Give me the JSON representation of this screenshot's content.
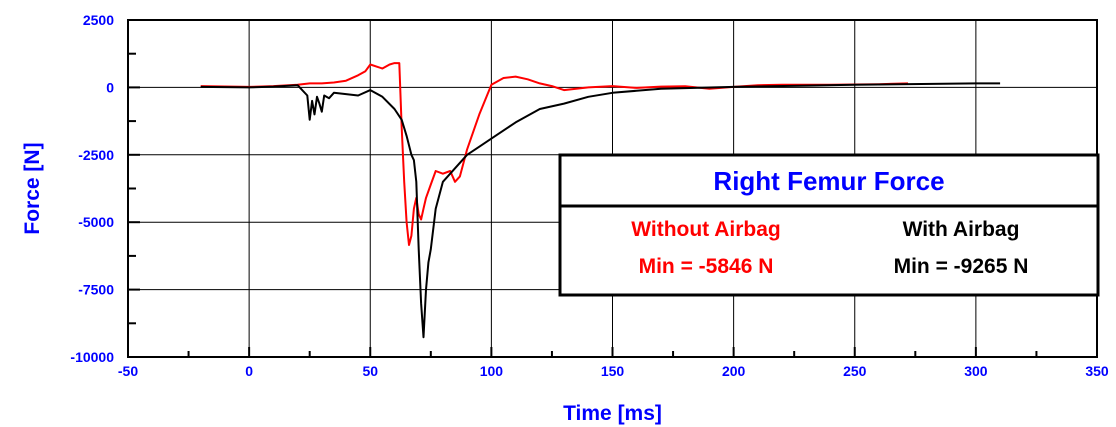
{
  "chart_data": {
    "type": "line",
    "title": "",
    "xlabel": "Time [ms]",
    "ylabel": "Force [N]",
    "xlim": [
      -50,
      350
    ],
    "ylim": [
      -10000,
      2500
    ],
    "x_ticks": [
      -50,
      0,
      50,
      100,
      150,
      200,
      250,
      300,
      350
    ],
    "y_ticks": [
      2500,
      0,
      -2500,
      -5000,
      -7500,
      -10000
    ],
    "grid": true,
    "legend": {
      "title": "Right Femur Force",
      "placement": "right",
      "entries": [
        {
          "label": "Without Airbag",
          "value_text": "Min = -5846 N",
          "color": "#ff0000"
        },
        {
          "label": "With Airbag",
          "value_text": "Min = -9265 N",
          "color": "#000000"
        }
      ]
    },
    "series": [
      {
        "color": "#ff0000",
        "x": [
          -20,
          0,
          10,
          20,
          25,
          30,
          35,
          40,
          45,
          48,
          50,
          55,
          58,
          60,
          62,
          63,
          64,
          65,
          66,
          67,
          68,
          69,
          70,
          71,
          72,
          73,
          75,
          77,
          80,
          83,
          85,
          87,
          90,
          95,
          100,
          105,
          110,
          115,
          120,
          125,
          130,
          140,
          150,
          160,
          170,
          180,
          190,
          200,
          210,
          220,
          240,
          260,
          272
        ],
        "y": [
          50,
          20,
          50,
          100,
          150,
          150,
          180,
          250,
          450,
          600,
          850,
          700,
          850,
          900,
          900,
          -1500,
          -3500,
          -5000,
          -5846,
          -5500,
          -4500,
          -4100,
          -4700,
          -4900,
          -4500,
          -4100,
          -3600,
          -3100,
          -3200,
          -3100,
          -3500,
          -3300,
          -2300,
          -1000,
          100,
          350,
          400,
          300,
          150,
          50,
          -100,
          0,
          50,
          -20,
          30,
          40,
          -50,
          20,
          80,
          100,
          100,
          120,
          150
        ]
      },
      {
        "color": "#000000",
        "x": [
          -20,
          0,
          10,
          20,
          24,
          25,
          26,
          27,
          28,
          29,
          30,
          31,
          33,
          35,
          40,
          45,
          50,
          55,
          60,
          63,
          65,
          67,
          68,
          69,
          70,
          71,
          72,
          73,
          74,
          75,
          77,
          80,
          85,
          90,
          95,
          100,
          110,
          120,
          130,
          140,
          150,
          170,
          200,
          250,
          300,
          310
        ],
        "y": [
          20,
          0,
          30,
          80,
          -300,
          -1200,
          -500,
          -1000,
          -350,
          -600,
          -900,
          -300,
          -400,
          -200,
          -250,
          -300,
          -100,
          -350,
          -800,
          -1200,
          -1800,
          -2500,
          -2700,
          -3500,
          -6000,
          -8000,
          -9265,
          -7500,
          -6500,
          -6000,
          -4500,
          -3500,
          -3000,
          -2500,
          -2200,
          -1900,
          -1300,
          -800,
          -600,
          -350,
          -200,
          -50,
          20,
          100,
          150,
          150
        ]
      }
    ]
  }
}
